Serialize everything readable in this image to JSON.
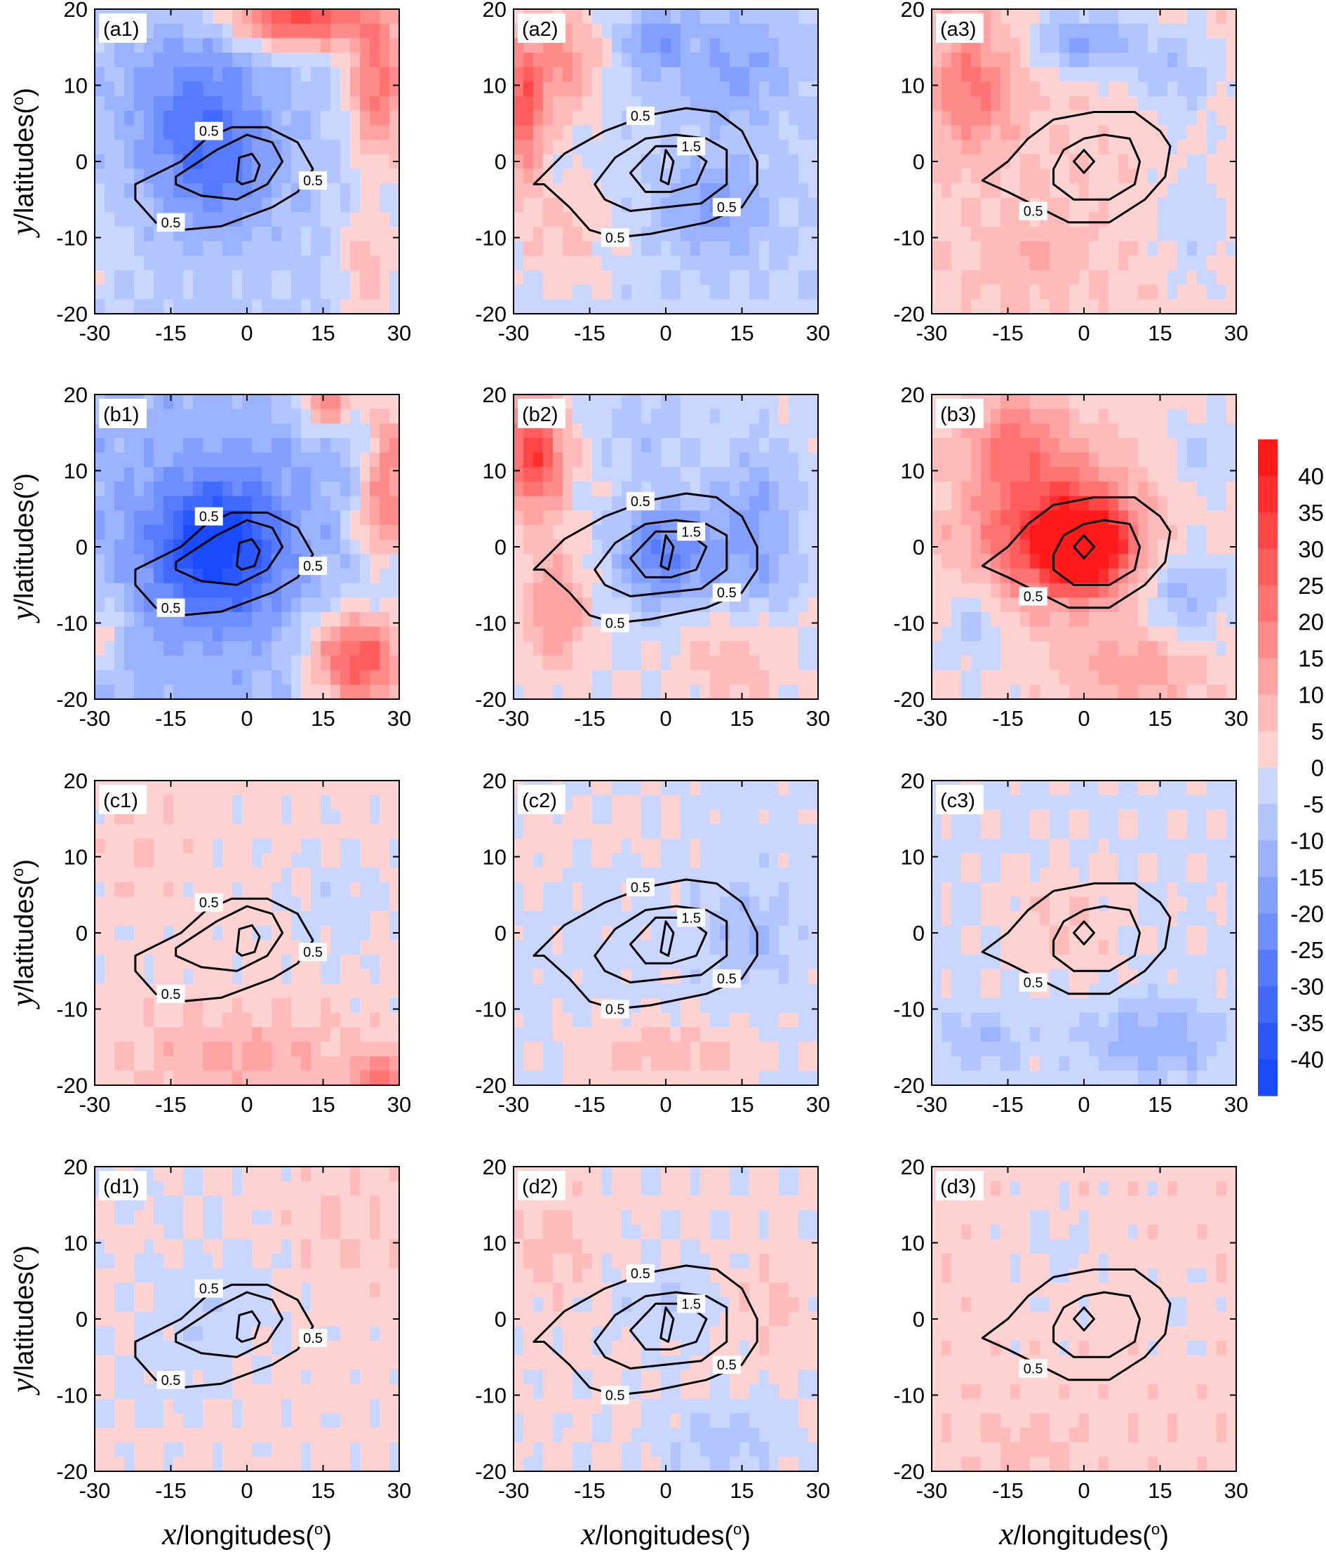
{
  "chart_data": {
    "type": "contour-grid",
    "layout": {
      "rows": [
        "a",
        "b",
        "c",
        "d"
      ],
      "cols": [
        1,
        2,
        3
      ]
    },
    "xlabel": {
      "var": "x",
      "text": "/longitudes(",
      "deg": "o",
      "close": ")"
    },
    "ylabel": {
      "var": "y",
      "text": "/latitudes(",
      "deg": "o",
      "close": ")"
    },
    "xlim": [
      -30,
      30
    ],
    "ylim": [
      -20,
      20
    ],
    "xticks": [
      -30,
      -15,
      0,
      15,
      30
    ],
    "yticks": [
      20,
      10,
      0,
      -10,
      -20
    ],
    "xtick_labels": [
      "-30",
      "-15",
      "0",
      "15",
      "30"
    ],
    "ytick_labels": [
      "20",
      "10",
      "0",
      "-10",
      "-20"
    ],
    "colorbar": {
      "levels": [
        40,
        35,
        30,
        25,
        20,
        15,
        10,
        5,
        0,
        -5,
        -10,
        -15,
        -20,
        -25,
        -30,
        -35,
        -40
      ],
      "labels": [
        "40",
        "35",
        "30",
        "25",
        "20",
        "15",
        "10",
        "5",
        "0",
        "-5",
        "-10",
        "-15",
        "-20",
        "-25",
        "-30",
        "-35",
        "-40"
      ],
      "colors": [
        "#ff1a1a",
        "#ff2e2e",
        "#ff4545",
        "#ff5c5c",
        "#ff7373",
        "#ff8a8a",
        "#ffa3a3",
        "#ffbaba",
        "#ffd2d2",
        "#c9d6ff",
        "#b2c5ff",
        "#9bb3ff",
        "#84a0ff",
        "#6e8eff",
        "#577bff",
        "#4069ff",
        "#2a57ff",
        "#1a4aff"
      ]
    },
    "contour_columns": [
      {
        "levels": [
          0.5,
          1.5,
          2.5
        ],
        "labels": [
          "0.5",
          "0.5",
          "0.5"
        ]
      },
      {
        "levels": [
          0.5,
          1.5,
          2.5
        ],
        "labels": [
          "0.5",
          "1.5",
          "0.5",
          "0.5"
        ]
      },
      {
        "levels": [
          0.5,
          1.5,
          2.5
        ],
        "labels": [
          "0.5"
        ]
      }
    ],
    "panels": [
      {
        "id": "(a1)",
        "row": 0,
        "col": 0,
        "base": -6,
        "blobs": [
          [
            -10,
            8,
            14,
            10,
            -18
          ],
          [
            -6,
            -2,
            12,
            8,
            -16
          ],
          [
            10,
            19,
            14,
            4,
            38
          ],
          [
            26,
            10,
            6,
            10,
            28
          ],
          [
            24,
            -14,
            6,
            8,
            14
          ],
          [
            -28,
            -12,
            6,
            6,
            5
          ]
        ]
      },
      {
        "id": "(a2)",
        "row": 0,
        "col": 1,
        "base": -4,
        "blobs": [
          [
            -28,
            7,
            4,
            10,
            30
          ],
          [
            -20,
            13,
            7,
            8,
            20
          ],
          [
            -20,
            -10,
            10,
            8,
            10
          ],
          [
            10,
            -6,
            10,
            6,
            -14
          ],
          [
            14,
            12,
            12,
            7,
            -12
          ],
          [
            -2,
            16,
            6,
            4,
            -15
          ]
        ]
      },
      {
        "id": "(a3)",
        "row": 0,
        "col": 2,
        "base": 4,
        "blobs": [
          [
            -22,
            10,
            8,
            8,
            18
          ],
          [
            0,
            16,
            10,
            4,
            -20
          ],
          [
            18,
            12,
            10,
            6,
            -12
          ],
          [
            22,
            -8,
            8,
            10,
            -8
          ],
          [
            -10,
            -12,
            10,
            6,
            6
          ]
        ]
      },
      {
        "id": "(b1)",
        "row": 1,
        "col": 0,
        "base": -12,
        "blobs": [
          [
            -6,
            0,
            13,
            9,
            -34
          ],
          [
            16,
            19,
            6,
            4,
            28
          ],
          [
            28,
            10,
            5,
            12,
            28
          ],
          [
            22,
            -15,
            10,
            7,
            40
          ],
          [
            -28,
            -11,
            4,
            6,
            14
          ],
          [
            24,
            3,
            6,
            6,
            10
          ]
        ]
      },
      {
        "id": "(b2)",
        "row": 1,
        "col": 1,
        "base": 0,
        "blobs": [
          [
            -26,
            12,
            6,
            7,
            34
          ],
          [
            0,
            -1,
            10,
            7,
            -26
          ],
          [
            18,
            2,
            9,
            12,
            -16
          ],
          [
            -22,
            -8,
            6,
            8,
            16
          ],
          [
            14,
            -14,
            10,
            6,
            10
          ],
          [
            -4,
            15,
            10,
            6,
            -8
          ]
        ]
      },
      {
        "id": "(b3)",
        "row": 1,
        "col": 2,
        "base": 2,
        "blobs": [
          [
            -6,
            2,
            16,
            9,
            32
          ],
          [
            0,
            0,
            8,
            5,
            44
          ],
          [
            -14,
            14,
            10,
            6,
            16
          ],
          [
            20,
            -6,
            8,
            6,
            -14
          ],
          [
            -22,
            -10,
            6,
            6,
            -10
          ],
          [
            10,
            -16,
            12,
            5,
            12
          ],
          [
            24,
            12,
            6,
            6,
            -8
          ]
        ]
      },
      {
        "id": "(c1)",
        "row": 2,
        "col": 0,
        "base": 2,
        "blobs": [
          [
            0,
            -16,
            20,
            5,
            10
          ],
          [
            26,
            -19,
            5,
            3,
            20
          ],
          [
            18,
            4,
            10,
            8,
            -5
          ],
          [
            -20,
            12,
            8,
            6,
            3
          ]
        ]
      },
      {
        "id": "(c2)",
        "row": 2,
        "col": 1,
        "base": -2,
        "blobs": [
          [
            0,
            -16,
            18,
            5,
            10
          ],
          [
            16,
            0,
            8,
            6,
            -9
          ],
          [
            -10,
            14,
            14,
            5,
            4
          ],
          [
            -26,
            10,
            6,
            6,
            4
          ]
        ]
      },
      {
        "id": "(c3)",
        "row": 2,
        "col": 2,
        "base": -1,
        "blobs": [
          [
            -4,
            1,
            12,
            8,
            6
          ],
          [
            14,
            -14,
            14,
            5,
            -13
          ],
          [
            -20,
            -14,
            8,
            4,
            -9
          ]
        ]
      },
      {
        "id": "(d1)",
        "row": 3,
        "col": 0,
        "base": 2,
        "blobs": [
          [
            -8,
            2,
            14,
            8,
            -6
          ],
          [
            -16,
            -10,
            12,
            6,
            -4
          ],
          [
            20,
            12,
            10,
            8,
            3
          ],
          [
            -18,
            16,
            10,
            4,
            -3
          ]
        ]
      },
      {
        "id": "(d2)",
        "row": 3,
        "col": 1,
        "base": 1,
        "blobs": [
          [
            0,
            2,
            10,
            6,
            -6
          ],
          [
            12,
            -16,
            14,
            5,
            -8
          ],
          [
            -22,
            10,
            8,
            8,
            6
          ],
          [
            20,
            2,
            8,
            6,
            5
          ]
        ]
      },
      {
        "id": "(d3)",
        "row": 3,
        "col": 2,
        "base": 3,
        "blobs": [
          [
            -4,
            8,
            10,
            8,
            -4
          ],
          [
            20,
            2,
            6,
            6,
            -3
          ],
          [
            -10,
            -16,
            10,
            4,
            4
          ]
        ]
      }
    ]
  }
}
